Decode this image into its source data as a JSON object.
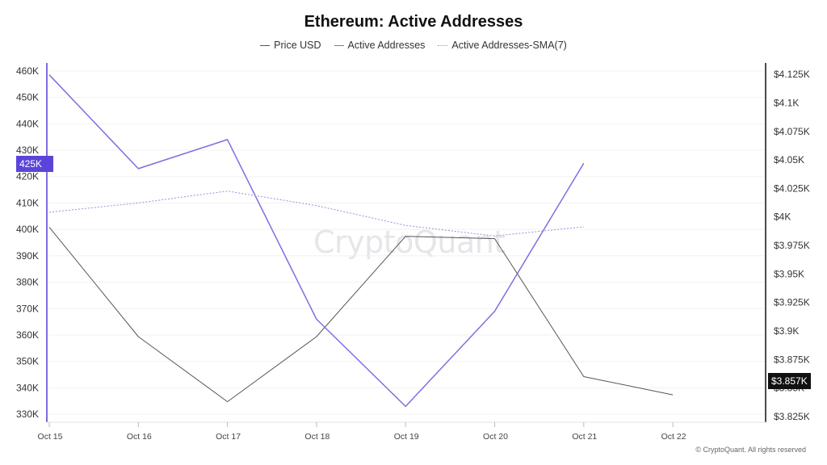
{
  "chart_data": {
    "type": "line",
    "title": "Ethereum: Active Addresses",
    "categories": [
      "Oct 15",
      "Oct 16",
      "Oct 17",
      "Oct 18",
      "Oct 19",
      "Oct 20",
      "Oct 21",
      "Oct 22"
    ],
    "series": [
      {
        "name": "Price USD",
        "axis": "right",
        "color": "#555555",
        "style": "solid",
        "values": [
          3991,
          3895,
          3838,
          3895,
          3983,
          3981,
          3860,
          3844
        ]
      },
      {
        "name": "Active Addresses",
        "axis": "left",
        "color": "#7b6fe0",
        "style": "solid",
        "values": [
          458500,
          423000,
          434000,
          366000,
          333000,
          369000,
          425000,
          null
        ]
      },
      {
        "name": "Active Addresses-SMA(7)",
        "axis": "left",
        "color": "#9a90dd",
        "style": "dotted",
        "values": [
          406500,
          410000,
          414500,
          409000,
          401500,
          397500,
          401000,
          null
        ]
      }
    ],
    "y_left": {
      "range": [
        327000,
        463000
      ],
      "ticks": [
        330000,
        340000,
        350000,
        360000,
        370000,
        380000,
        390000,
        400000,
        410000,
        420000,
        430000,
        440000,
        450000,
        460000
      ],
      "tick_labels": [
        "330K",
        "340K",
        "350K",
        "360K",
        "370K",
        "380K",
        "390K",
        "400K",
        "410K",
        "420K",
        "430K",
        "440K",
        "450K",
        "460K"
      ]
    },
    "y_right": {
      "range": [
        3820,
        4135
      ],
      "ticks": [
        3825,
        3850,
        3875,
        3900,
        3925,
        3950,
        3975,
        4000,
        4025,
        4050,
        4075,
        4100,
        4125
      ],
      "tick_labels": [
        "$3.825K",
        "$3.85K",
        "$3.875K",
        "$3.9K",
        "$3.925K",
        "$3.95K",
        "$3.975K",
        "$4K",
        "$4.025K",
        "$4.05K",
        "$4.075K",
        "$4.1K",
        "$4.125K"
      ]
    },
    "current_left_label": "425K",
    "current_right_label": "$3.857K",
    "grid": true,
    "legend_position": "top-center"
  },
  "legend": [
    "Price USD",
    "Active Addresses",
    "Active Addresses-SMA(7)"
  ],
  "watermark": "CryptoQuant",
  "copyright": "© CryptoQuant. All rights reserved"
}
